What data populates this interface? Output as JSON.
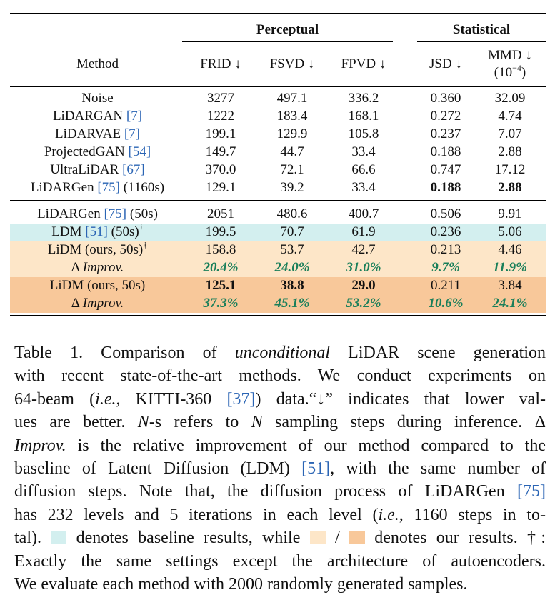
{
  "table": {
    "group_perceptual": "Perceptual",
    "group_statistical": "Statistical",
    "headers": {
      "method": "Method",
      "frid": "FRID ↓",
      "fsvd": "FSVD ↓",
      "fpvd": "FPVD ↓",
      "jsd": "JSD ↓",
      "mmd_line1": "MMD ↓",
      "mmd_line2": "(10",
      "mmd_exp": "−4",
      "mmd_close": ")"
    },
    "rows_top": [
      {
        "name": "Noise",
        "cite": "",
        "suffix": "",
        "frid": "3277",
        "fsvd": "497.1",
        "fpvd": "336.2",
        "jsd": "0.360",
        "mmd": "32.09"
      },
      {
        "name": "LiDARGAN ",
        "cite": "[7]",
        "suffix": "",
        "frid": "1222",
        "fsvd": "183.4",
        "fpvd": "168.1",
        "jsd": "0.272",
        "mmd": "4.74"
      },
      {
        "name": "LiDARVAE ",
        "cite": "[7]",
        "suffix": "",
        "frid": "199.1",
        "fsvd": "129.9",
        "fpvd": "105.8",
        "jsd": "0.237",
        "mmd": "7.07"
      },
      {
        "name": "ProjectedGAN ",
        "cite": "[54]",
        "suffix": "",
        "frid": "149.7",
        "fsvd": "44.7",
        "fpvd": "33.4",
        "jsd": "0.188",
        "mmd": "2.88"
      },
      {
        "name": "UltraLiDAR ",
        "cite": "[67]",
        "suffix": "",
        "frid": "370.0",
        "fsvd": "72.1",
        "fpvd": "66.6",
        "jsd": "0.747",
        "mmd": "17.12"
      },
      {
        "name": "LiDARGen ",
        "cite": "[75]",
        "suffix": " (1160s)",
        "frid": "129.1",
        "fsvd": "39.2",
        "fpvd": "33.4",
        "jsd": "0.188",
        "mmd": "2.88"
      }
    ],
    "rows_bottom": [
      {
        "name": "LiDARGen ",
        "cite": "[75]",
        "suffix": " (50s)",
        "dagger": "",
        "frid": "2051",
        "fsvd": "480.6",
        "fpvd": "400.7",
        "jsd": "0.506",
        "mmd": "9.91"
      },
      {
        "name": "LDM ",
        "cite": "[51]",
        "suffix": " (50s)",
        "dagger": "†",
        "frid": "199.5",
        "fsvd": "70.7",
        "fpvd": "61.9",
        "jsd": "0.236",
        "mmd": "5.06"
      },
      {
        "name": "LiDM (ours, 50s)",
        "cite": "",
        "suffix": "",
        "dagger": "†",
        "frid": "158.8",
        "fsvd": "53.7",
        "fpvd": "42.7",
        "jsd": "0.213",
        "mmd": "4.46"
      },
      {
        "name": "Δ ",
        "cite": "",
        "suffix": "Improv.",
        "dagger": "",
        "frid": "20.4%",
        "fsvd": "24.0%",
        "fpvd": "31.0%",
        "jsd": "9.7%",
        "mmd": "11.9%"
      },
      {
        "name": "LiDM (ours, 50s)",
        "cite": "",
        "suffix": "",
        "dagger": "",
        "frid": "125.1",
        "fsvd": "38.8",
        "fpvd": "29.0",
        "jsd": "0.211",
        "mmd": "3.84"
      },
      {
        "name": "Δ ",
        "cite": "",
        "suffix": "Improv.",
        "dagger": "",
        "frid": "37.3%",
        "fsvd": "45.1%",
        "fpvd": "53.2%",
        "jsd": "10.6%",
        "mmd": "24.1%"
      }
    ]
  },
  "caption": {
    "l1a": "Table 1.   Comparison of ",
    "l1b": "unconditional",
    "l1c": " LiDAR scene generation",
    "l2": "with recent state-of-the-art methods. We conduct experiments on",
    "l3a": "64-beam (",
    "l3b": "i.e.",
    "l3c": ", KITTI-360 ",
    "l3d": "[37]",
    "l3e": ") data.“↓” indicates that lower val-",
    "l4a": "ues are better. ",
    "l4b": "N",
    "l4c": "-s refers to ",
    "l4d": "N",
    "l4e": " sampling steps during inference. Δ",
    "l5a": "Improv.",
    "l5b": " is the relative improvement of our method compared to the",
    "l6a": "baseline of Latent Diffusion (LDM) ",
    "l6b": "[51]",
    "l6c": ", with the same number of",
    "l7a": "diffusion steps. Note that, the diffusion process of LiDARGen ",
    "l7b": "[75]",
    "l8a": "has 232 levels and 5 iterations in each level (",
    "l8b": "i.e.",
    "l8c": ", 1160 steps in to-",
    "l9a": "tal). ",
    "l9b": " denotes baseline results, while ",
    "l9c": " / ",
    "l9d": " denotes our results. †:",
    "l10": "Exactly the same settings except the architecture of autoencoders.",
    "l11": "We evaluate each method with 2000 randomly generated samples."
  },
  "colors": {
    "baseline": "#d3efef",
    "ours_light": "#fde6c8",
    "ours_dark": "#f8c89a",
    "improv_text": "#1a7f5a",
    "cite": "#2a64b4"
  }
}
